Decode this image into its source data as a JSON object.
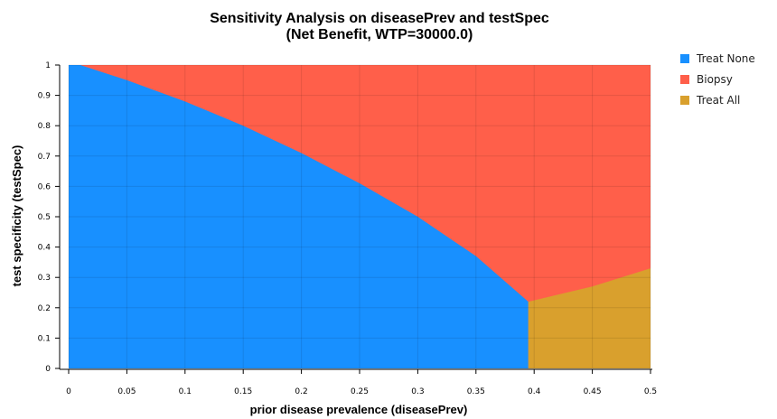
{
  "chart_data": {
    "type": "area",
    "title": "Sensitivity Analysis on diseasePrev and testSpec",
    "subtitle": "(Net Benefit, WTP=30000.0)",
    "xlabel": "prior disease prevalence (diseasePrev)",
    "ylabel": "test specificity (testSpec)",
    "xlim": [
      0,
      0.5
    ],
    "ylim": [
      0,
      1
    ],
    "xticks": [
      "0",
      "0.05",
      "0.1",
      "0.15",
      "0.2",
      "0.25",
      "0.3",
      "0.35",
      "0.4",
      "0.45",
      "0.5"
    ],
    "yticks": [
      "0",
      "0.1",
      "0.2",
      "0.3",
      "0.4",
      "0.5",
      "0.6",
      "0.7",
      "0.8",
      "0.9",
      "1"
    ],
    "grid": true,
    "legend_position": "top-right",
    "series": [
      {
        "name": "Treat None",
        "color": "#1890ff",
        "boundary": [
          [
            0,
            1
          ],
          [
            0.01,
            1
          ],
          [
            0.05,
            0.95
          ],
          [
            0.1,
            0.88
          ],
          [
            0.15,
            0.8
          ],
          [
            0.2,
            0.71
          ],
          [
            0.25,
            0.61
          ],
          [
            0.3,
            0.5
          ],
          [
            0.35,
            0.37
          ],
          [
            0.395,
            0.22
          ]
        ],
        "x_end": 0.395
      },
      {
        "name": "Biopsy",
        "color": "#ff5f4a"
      },
      {
        "name": "Treat All",
        "color": "#d9a02d",
        "boundary": [
          [
            0.395,
            0.22
          ],
          [
            0.45,
            0.27
          ],
          [
            0.5,
            0.33
          ]
        ],
        "x_start": 0.395
      }
    ]
  }
}
